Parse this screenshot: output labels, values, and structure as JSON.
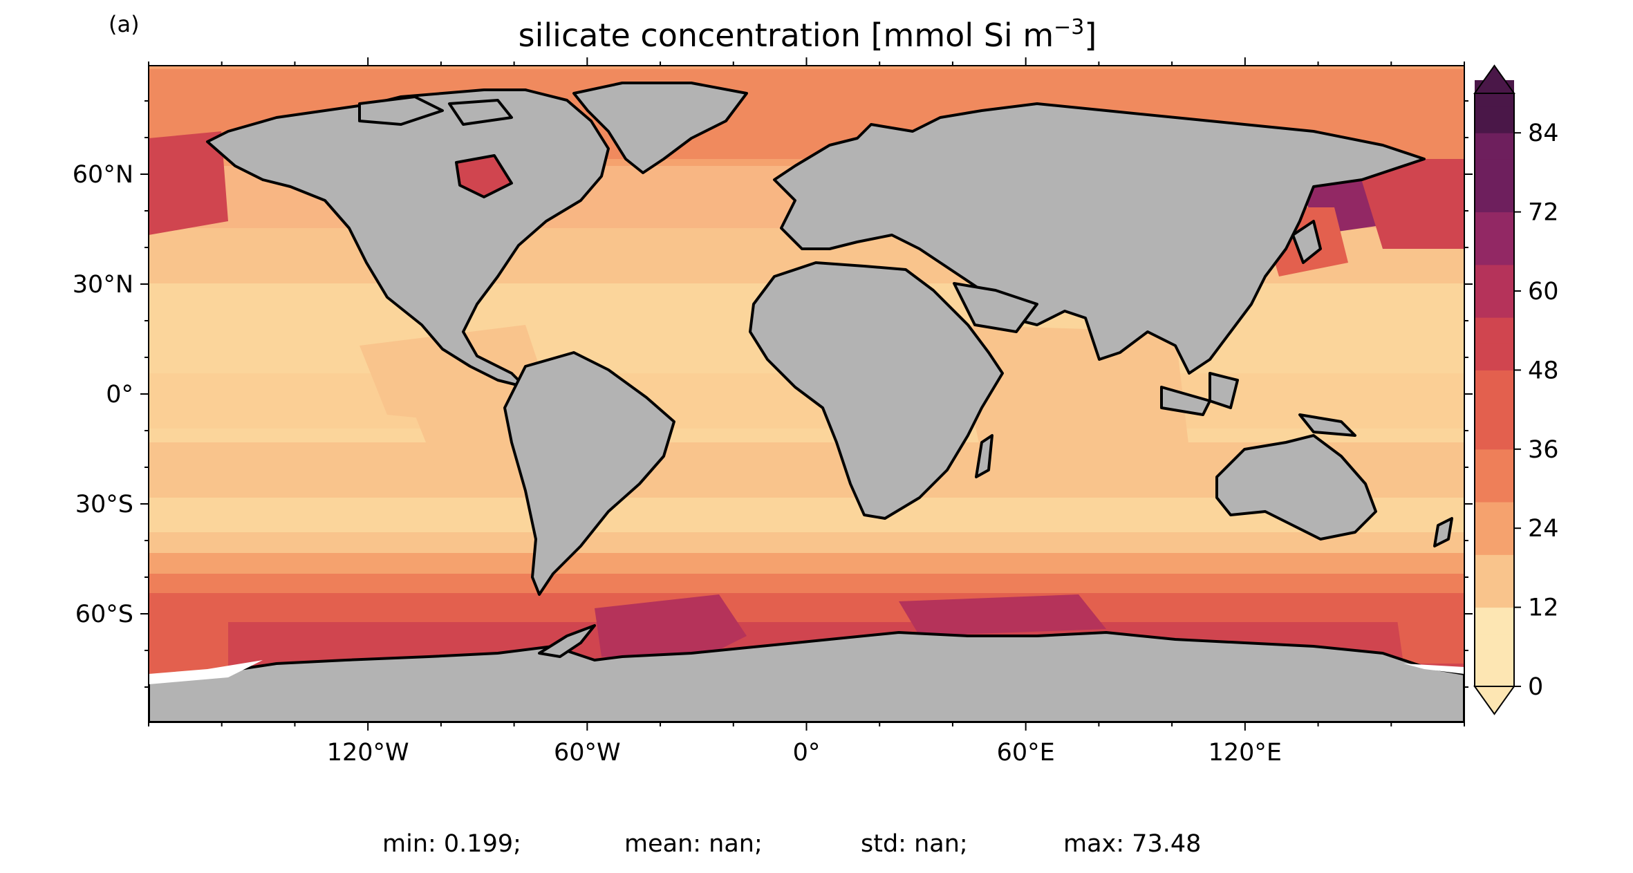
{
  "panel_label": "(a)",
  "title": "silicate concentration [mmol Si m",
  "title_exp": "−3",
  "title_end": "]",
  "lat_ticks": [
    {
      "label": "60°N",
      "value": 60
    },
    {
      "label": "30°N",
      "value": 30
    },
    {
      "label": "0°",
      "value": 0
    },
    {
      "label": "30°S",
      "value": -30
    },
    {
      "label": "60°S",
      "value": -60
    }
  ],
  "lon_ticks": [
    {
      "label": "120°W",
      "value": -120
    },
    {
      "label": "60°W",
      "value": -60
    },
    {
      "label": "0°",
      "value": 0
    },
    {
      "label": "60°E",
      "value": 60
    },
    {
      "label": "120°E",
      "value": 120
    }
  ],
  "colorbar": {
    "ticks": [
      "0",
      "12",
      "24",
      "36",
      "48",
      "60",
      "72",
      "84"
    ],
    "tick_values": [
      0,
      12,
      24,
      36,
      48,
      60,
      72,
      84
    ],
    "range": [
      0,
      90
    ],
    "step": 4,
    "extend": "both",
    "colors": [
      "#fde6b3",
      "#f9c48c",
      "#f5a26e",
      "#ee7f59",
      "#e3604e",
      "#d0454f",
      "#b5335a",
      "#922864",
      "#6e1f5d",
      "#4a1748"
    ]
  },
  "stats": {
    "min": "min: 0.199;",
    "mean": "mean: nan;",
    "std": "std: nan;",
    "max": "max: 73.48"
  },
  "colors": {
    "land": "#b3b3b3",
    "coast": "#000000",
    "no_data": "#ffffff"
  }
}
